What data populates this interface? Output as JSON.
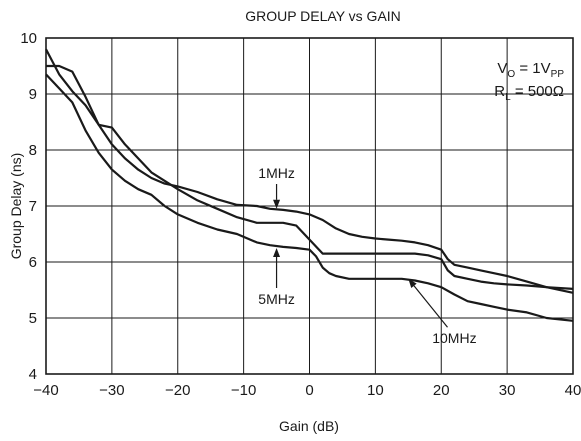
{
  "chart_data": {
    "type": "line",
    "title": "GROUP DELAY vs GAIN",
    "xlabel": "Gain (dB)",
    "ylabel": "Group Delay (ns)",
    "xlim": [
      -40,
      40
    ],
    "ylim": [
      4,
      10
    ],
    "xticks": [
      -40,
      -30,
      -20,
      -10,
      0,
      10,
      20,
      30,
      40
    ],
    "xtick_labels": [
      "−40",
      "−30",
      "−20",
      "−10",
      "0",
      "10",
      "20",
      "30",
      "40"
    ],
    "yticks": [
      4,
      5,
      6,
      7,
      8,
      9,
      10
    ],
    "ytick_labels": [
      "4",
      "5",
      "6",
      "7",
      "8",
      "9",
      "10"
    ],
    "grid": true,
    "legend_box": {
      "line1_main": "V",
      "line1_sub": "O",
      "line1_rest": " = 1V",
      "line1_sub2": "PP",
      "line2_main": "R",
      "line2_sub": "L",
      "line2_rest": " = 500Ω"
    },
    "series": [
      {
        "name": "1MHz",
        "label": "1MHz",
        "label_at": [
          -5,
          7.5
        ],
        "arrow_to": [
          -5,
          6.95
        ],
        "x": [
          -40,
          -38,
          -36,
          -34,
          -32,
          -30,
          -28,
          -26,
          -24,
          -22,
          -20,
          -17,
          -14,
          -11,
          -8,
          -6,
          -4,
          -2,
          0,
          2,
          4,
          6,
          8,
          10,
          12,
          14,
          16,
          18,
          20,
          21,
          22,
          24,
          26,
          28,
          30,
          33,
          36,
          40
        ],
        "y": [
          9.8,
          9.35,
          9.05,
          8.8,
          8.45,
          8.1,
          7.85,
          7.65,
          7.5,
          7.4,
          7.35,
          7.25,
          7.12,
          7.02,
          7.0,
          6.95,
          6.93,
          6.9,
          6.85,
          6.75,
          6.6,
          6.5,
          6.45,
          6.42,
          6.4,
          6.38,
          6.35,
          6.3,
          6.22,
          6.05,
          5.95,
          5.9,
          5.85,
          5.8,
          5.75,
          5.65,
          5.55,
          5.45
        ]
      },
      {
        "name": "5MHz",
        "label": "5MHz",
        "label_at": [
          -5,
          5.25
        ],
        "arrow_to": [
          -5,
          6.25
        ],
        "x": [
          -40,
          -38,
          -36,
          -34,
          -32,
          -30,
          -28,
          -26,
          -24,
          -22,
          -20,
          -17,
          -14,
          -11,
          -8,
          -6,
          -4,
          -2,
          0,
          2,
          4,
          6,
          8,
          10,
          12,
          14,
          16,
          18,
          20,
          21,
          22,
          24,
          26,
          28,
          30,
          33,
          36,
          40
        ],
        "y": [
          9.5,
          9.5,
          9.4,
          8.95,
          8.45,
          8.4,
          8.1,
          7.85,
          7.6,
          7.45,
          7.3,
          7.1,
          6.95,
          6.8,
          6.7,
          6.7,
          6.7,
          6.65,
          6.4,
          6.15,
          6.15,
          6.15,
          6.15,
          6.15,
          6.15,
          6.15,
          6.15,
          6.12,
          6.05,
          5.85,
          5.75,
          5.7,
          5.65,
          5.62,
          5.6,
          5.58,
          5.55,
          5.52
        ]
      },
      {
        "name": "10MHz",
        "label": "10MHz",
        "label_at": [
          22,
          4.55
        ],
        "arrow_to": [
          15,
          5.7
        ],
        "x": [
          -40,
          -38,
          -36,
          -34,
          -32,
          -30,
          -28,
          -26,
          -24,
          -22,
          -20,
          -17,
          -14,
          -11,
          -8,
          -6,
          -4,
          -2,
          0,
          1,
          2,
          3,
          4,
          6,
          8,
          10,
          12,
          14,
          16,
          18,
          20,
          22,
          24,
          26,
          28,
          30,
          33,
          36,
          40
        ],
        "y": [
          9.35,
          9.1,
          8.85,
          8.35,
          7.95,
          7.65,
          7.45,
          7.3,
          7.2,
          7.0,
          6.85,
          6.7,
          6.58,
          6.5,
          6.35,
          6.3,
          6.27,
          6.25,
          6.22,
          6.1,
          5.9,
          5.8,
          5.75,
          5.7,
          5.7,
          5.7,
          5.7,
          5.7,
          5.67,
          5.62,
          5.55,
          5.42,
          5.3,
          5.25,
          5.2,
          5.15,
          5.1,
          5.0,
          4.95
        ]
      }
    ]
  }
}
